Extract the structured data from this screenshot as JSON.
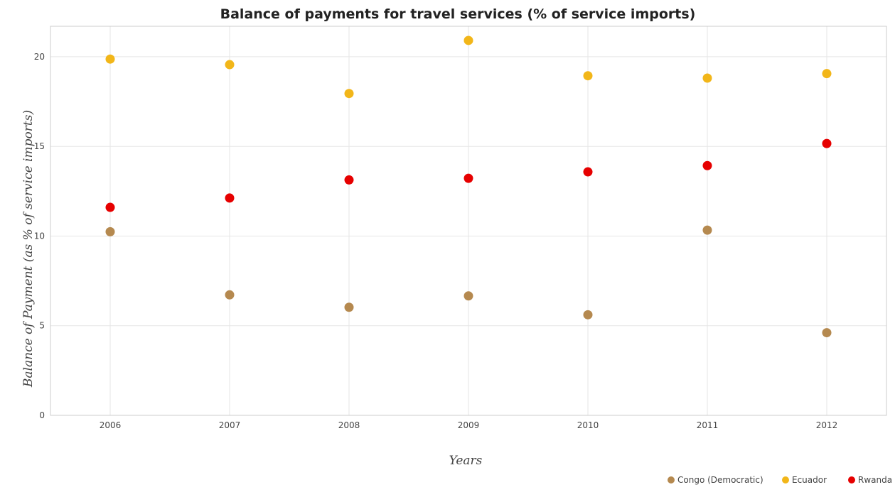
{
  "chart_data": {
    "type": "scatter",
    "title": "Balance of payments for travel services (% of service imports)",
    "xlabel": "Years",
    "ylabel": "Balance of Payment (as % of service imports)",
    "categories": [
      "2006",
      "2007",
      "2008",
      "2009",
      "2010",
      "2011",
      "2012"
    ],
    "ylim": [
      0,
      21.7
    ],
    "yticks": [
      0,
      5,
      10,
      15,
      20
    ],
    "grid": true,
    "legend_position": "bottom-right",
    "series": [
      {
        "name": "Congo (Democratic)",
        "color": "#b5894f",
        "values": [
          10.24,
          6.72,
          6.03,
          6.66,
          5.61,
          10.33,
          4.61
        ]
      },
      {
        "name": "Ecuador",
        "color": "#f2b619",
        "values": [
          19.87,
          19.56,
          17.95,
          20.91,
          18.94,
          18.81,
          19.06
        ]
      },
      {
        "name": "Rwanda",
        "color": "#e60000",
        "values": [
          11.6,
          12.12,
          13.13,
          13.22,
          13.58,
          13.93,
          15.16
        ]
      }
    ]
  }
}
